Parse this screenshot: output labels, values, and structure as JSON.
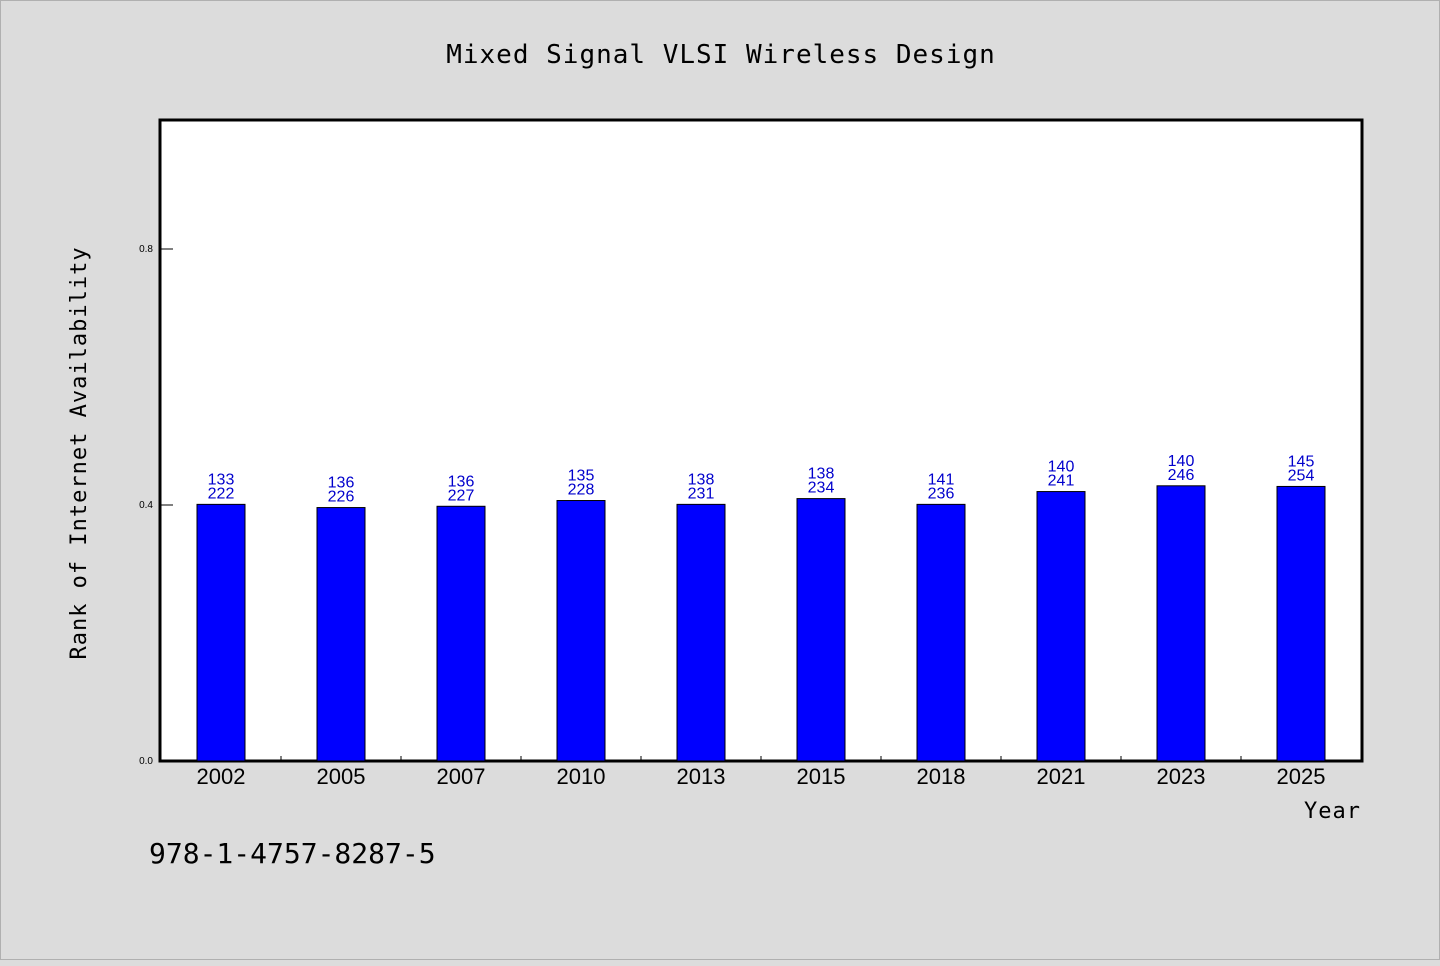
{
  "chart_data": {
    "type": "bar",
    "title": "Mixed Signal VLSI Wireless Design",
    "xlabel": "Year",
    "ylabel": "Rank of Internet Availability",
    "categories": [
      "2002",
      "2005",
      "2007",
      "2010",
      "2013",
      "2015",
      "2018",
      "2021",
      "2023",
      "2025"
    ],
    "values": [
      0.401,
      0.396,
      0.398,
      0.407,
      0.401,
      0.41,
      0.401,
      0.421,
      0.43,
      0.429
    ],
    "label_top": [
      "133",
      "136",
      "136",
      "135",
      "138",
      "138",
      "141",
      "140",
      "140",
      "145"
    ],
    "label_bottom": [
      "222",
      "226",
      "227",
      "228",
      "231",
      "234",
      "236",
      "241",
      "246",
      "254"
    ],
    "ylim": [
      0,
      1.0
    ],
    "yticks": [
      0.0,
      0.4,
      0.8
    ],
    "ytick_labels": [
      "0.0",
      "0.4",
      "0.8"
    ],
    "grid": false,
    "bar_color": "#0000ff",
    "label_color": "#0000cc",
    "background": "#dcdcdc",
    "plot_background": "#ffffff"
  },
  "footnote": "978-1-4757-8287-5"
}
